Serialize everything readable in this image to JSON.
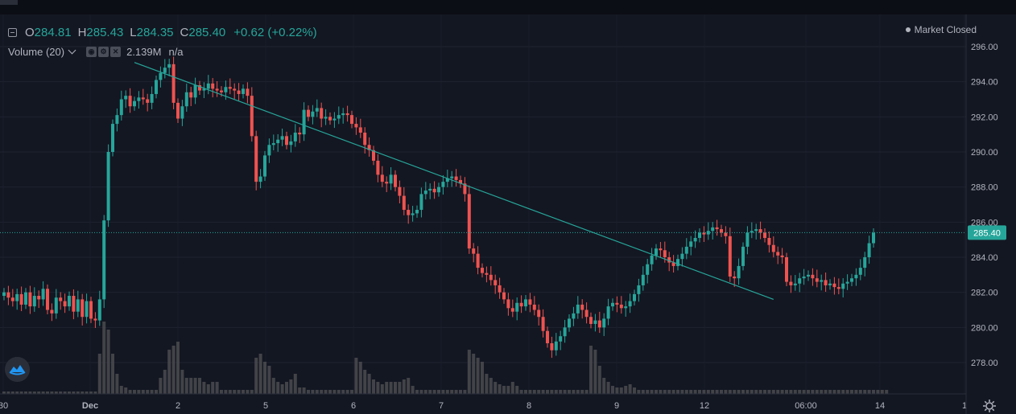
{
  "legend": {
    "open_label": "O",
    "open": "284.81",
    "high_label": "H",
    "high": "285.43",
    "low_label": "L",
    "low": "284.35",
    "close_label": "C",
    "close": "285.40",
    "change": "+0.62 (+0.22%)"
  },
  "volume_indicator": {
    "label": "Volume (20)",
    "value": "2.139M",
    "secondary": "n/a"
  },
  "market_status": "Market Closed",
  "icons": {
    "collapse": "collapse-icon",
    "chevron": "chevron-down-icon",
    "eye": "eye-icon",
    "settings": "gear-icon",
    "close": "close-icon",
    "logo": "tradingview-logo-icon",
    "chart_settings": "gear-icon"
  },
  "colors": {
    "up": "#26a69a",
    "down": "#ef5350",
    "trendline": "#26a69a",
    "background": "#131722"
  },
  "chart_data": {
    "type": "candlestick",
    "title": "",
    "ylim": [
      276.5,
      297.0
    ],
    "y_ticks": [
      "296.00",
      "294.00",
      "292.00",
      "290.00",
      "288.00",
      "286.00",
      "284.00",
      "282.00",
      "280.00",
      "278.00"
    ],
    "x_ticks": [
      "30",
      "Dec",
      "2",
      "5",
      "6",
      "7",
      "8",
      "9",
      "12",
      "06:00",
      "14",
      "1"
    ],
    "last_price_label": "285.40",
    "grid": true,
    "trendline": {
      "start": {
        "bar": 30,
        "price": 295.1
      },
      "end": {
        "bar": 177,
        "price": 281.6
      }
    },
    "closes": [
      282.0,
      281.7,
      281.5,
      281.9,
      281.3,
      282.0,
      281.2,
      281.8,
      281.6,
      282.2,
      281.0,
      280.8,
      281.7,
      281.5,
      281.2,
      281.8,
      280.9,
      281.6,
      280.6,
      281.5,
      280.5,
      280.4,
      281.6,
      286.1,
      290.0,
      291.6,
      292.1,
      293.0,
      293.2,
      292.6,
      292.9,
      293.1,
      293.0,
      292.8,
      293.3,
      294.1,
      294.5,
      294.8,
      295.0,
      292.8,
      291.9,
      292.6,
      293.4,
      293.1,
      293.8,
      293.5,
      293.6,
      293.9,
      293.6,
      293.5,
      293.4,
      293.7,
      293.6,
      293.5,
      293.3,
      293.6,
      293.2,
      290.9,
      288.3,
      288.6,
      289.8,
      290.4,
      290.5,
      290.7,
      290.9,
      290.4,
      290.6,
      291.1,
      291.0,
      292.4,
      292.0,
      292.3,
      292.5,
      291.9,
      292.0,
      291.8,
      291.9,
      292.1,
      292.2,
      292.1,
      291.6,
      291.4,
      291.1,
      290.4,
      290.1,
      289.5,
      288.7,
      288.3,
      288.2,
      288.7,
      288.0,
      287.5,
      286.7,
      286.4,
      286.5,
      286.7,
      287.6,
      287.8,
      287.9,
      287.7,
      288.0,
      288.3,
      288.5,
      288.6,
      288.4,
      288.2,
      287.6,
      284.5,
      284.2,
      283.4,
      283.1,
      283.0,
      282.7,
      282.4,
      282.0,
      281.6,
      281.1,
      280.9,
      281.4,
      281.2,
      281.6,
      281.3,
      281.0,
      280.6,
      279.8,
      279.1,
      278.7,
      279.2,
      279.5,
      280.0,
      280.5,
      280.8,
      281.3,
      281.0,
      280.6,
      280.2,
      280.4,
      280.0,
      280.5,
      281.2,
      281.4,
      281.3,
      281.1,
      281.2,
      281.5,
      281.9,
      282.4,
      283.0,
      283.6,
      284.1,
      284.5,
      284.4,
      284.0,
      283.7,
      283.5,
      283.9,
      284.2,
      284.6,
      284.9,
      285.1,
      285.4,
      285.3,
      285.5,
      285.7,
      285.6,
      285.4,
      285.2,
      282.9,
      282.8,
      283.5,
      284.6,
      285.4,
      285.5,
      285.6,
      285.4,
      285.1,
      284.7,
      284.3,
      284.1,
      284.0,
      282.6,
      282.4,
      282.5,
      282.8,
      282.9,
      283.0,
      282.8,
      282.6,
      282.7,
      282.4,
      282.5,
      282.3,
      282.2,
      282.5,
      282.6,
      282.8,
      283.0,
      283.4,
      284.0,
      284.8,
      285.4
    ],
    "volumes": [
      3,
      3,
      3,
      3,
      3,
      3,
      3,
      3,
      3,
      3,
      3,
      3,
      3,
      3,
      3,
      3,
      3,
      3,
      3,
      3,
      3,
      3,
      50,
      90,
      80,
      50,
      25,
      10,
      8,
      5,
      5,
      5,
      5,
      5,
      5,
      5,
      20,
      30,
      55,
      60,
      65,
      30,
      20,
      20,
      20,
      20,
      15,
      12,
      15,
      15,
      5,
      5,
      5,
      5,
      5,
      5,
      5,
      5,
      45,
      50,
      40,
      35,
      20,
      15,
      12,
      15,
      18,
      25,
      8,
      8,
      5,
      5,
      5,
      5,
      5,
      5,
      5,
      5,
      5,
      5,
      5,
      45,
      40,
      30,
      25,
      18,
      15,
      12,
      15,
      15,
      15,
      15,
      18,
      20,
      10,
      5,
      5,
      5,
      5,
      5,
      5,
      5,
      5,
      5,
      5,
      5,
      5,
      55,
      50,
      45,
      40,
      25,
      20,
      15,
      12,
      10,
      10,
      15,
      10,
      5,
      5,
      5,
      5,
      5,
      5,
      5,
      5,
      5,
      5,
      5,
      5,
      5,
      5,
      5,
      5,
      60,
      55,
      35,
      20,
      15,
      10,
      8,
      8,
      10,
      12,
      8,
      5,
      5,
      5,
      5,
      5,
      5,
      5,
      5,
      5,
      5,
      5,
      5,
      5,
      5,
      5,
      5,
      5,
      5,
      5,
      5,
      5,
      5,
      5,
      5,
      5,
      5,
      5,
      5,
      5,
      5,
      5,
      5,
      5,
      5,
      5,
      5,
      5,
      5,
      5,
      5,
      5,
      5,
      5,
      5,
      5,
      5,
      5,
      5,
      5,
      5,
      5,
      5,
      5,
      5,
      5,
      5,
      5,
      5
    ]
  }
}
